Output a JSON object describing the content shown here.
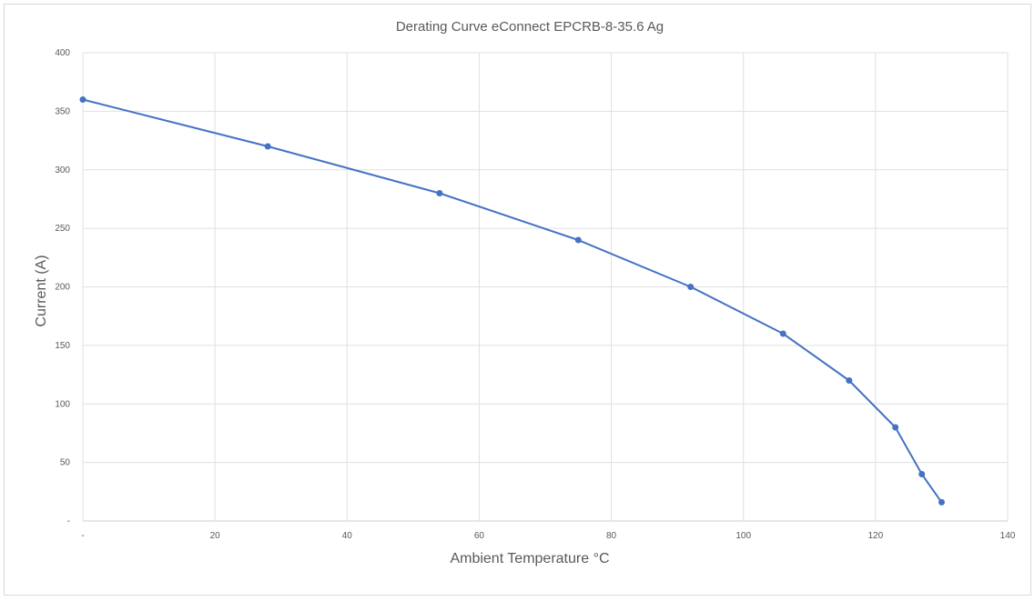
{
  "chart_data": {
    "type": "line",
    "title": "Derating Curve eConnect EPCRB-8-35.6 Ag",
    "xlabel": "Ambient Temperature °C",
    "ylabel": "Current (A)",
    "xlim": [
      0,
      140
    ],
    "ylim": [
      0,
      400
    ],
    "x_ticks": [
      0,
      20,
      40,
      60,
      80,
      100,
      120,
      140
    ],
    "x_tick_labels": [
      "-",
      "20",
      "40",
      "60",
      "80",
      "100",
      "120",
      "140"
    ],
    "y_ticks": [
      0,
      50,
      100,
      150,
      200,
      250,
      300,
      350,
      400
    ],
    "y_tick_labels": [
      "-",
      "50",
      "100",
      "150",
      "200",
      "250",
      "300",
      "350",
      "400"
    ],
    "grid": true,
    "legend": "none",
    "series": [
      {
        "color": "#4472c4",
        "marker": "circle",
        "x": [
          0,
          28,
          54,
          75,
          92,
          106,
          116,
          123,
          127,
          130
        ],
        "y": [
          360,
          320,
          280,
          240,
          200,
          160,
          120,
          80,
          40,
          16
        ]
      }
    ]
  }
}
